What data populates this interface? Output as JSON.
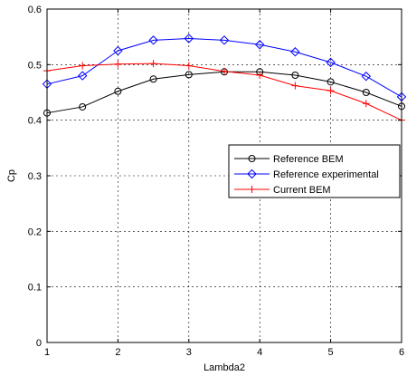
{
  "chart_data": {
    "type": "line",
    "xlabel": "Lambda2",
    "ylabel": "Cp",
    "xlim": [
      1,
      6
    ],
    "ylim": [
      0,
      0.6
    ],
    "grid": true,
    "legend_position": "right",
    "x_ticks": [
      "1",
      "2",
      "3",
      "4",
      "5",
      "6"
    ],
    "y_ticks": [
      "0",
      "0.1",
      "0.2",
      "0.3",
      "0.4",
      "0.5",
      "0.6"
    ],
    "x": [
      1,
      1.5,
      2,
      2.5,
      3,
      3.5,
      4,
      4.5,
      5,
      5.5,
      6
    ],
    "series": [
      {
        "name": "Reference BEM",
        "color": "#000000",
        "marker": "circle",
        "values": [
          0.413,
          0.424,
          0.452,
          0.474,
          0.482,
          0.487,
          0.487,
          0.481,
          0.469,
          0.45,
          0.425
        ]
      },
      {
        "name": "Reference experimental",
        "color": "#0000ff",
        "marker": "diamond",
        "values": [
          0.465,
          0.48,
          0.525,
          0.544,
          0.547,
          0.544,
          0.536,
          0.523,
          0.504,
          0.479,
          0.442
        ]
      },
      {
        "name": "Current BEM",
        "color": "#ff0000",
        "marker": "plus",
        "values": [
          0.489,
          0.498,
          0.501,
          0.502,
          0.498,
          0.488,
          0.481,
          0.462,
          0.453,
          0.43,
          0.4
        ]
      }
    ]
  }
}
